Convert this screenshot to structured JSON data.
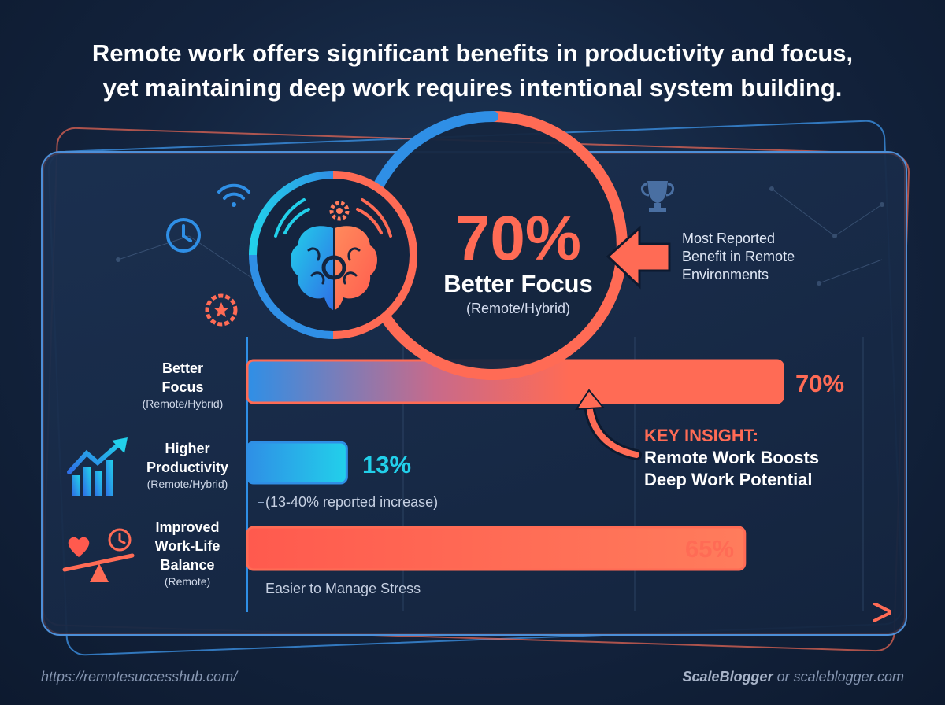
{
  "headline": {
    "line1": "Remote work offers significant benefits in productivity and focus,",
    "line2": "yet maintaining deep work requires intentional system building."
  },
  "hero": {
    "value": "70%",
    "label": "Better Focus",
    "sublabel": "(Remote/Hybrid)"
  },
  "callout": {
    "line1": "Most Reported",
    "line2": "Benefit in Remote",
    "line3": "Environments"
  },
  "chart_data": {
    "type": "bar",
    "orientation": "horizontal",
    "xlim": [
      0,
      100
    ],
    "grid": true,
    "categories": [
      {
        "main": "Better",
        "main2": "Focus",
        "sub": "(Remote/Hybrid)"
      },
      {
        "main": "Higher",
        "main2": "Productivity",
        "sub": "(Remote/Hybrid)"
      },
      {
        "main": "Improved",
        "main2": "Work-Life",
        "main3": "Balance",
        "sub": "(Remote)"
      }
    ],
    "values": [
      70,
      13,
      65
    ],
    "value_labels": [
      "70%",
      "13%",
      "65%"
    ],
    "notes": [
      "",
      "(13-40% reported increase)",
      "Easier to Manage Stress"
    ],
    "colors": {
      "orange": "#ff6b55",
      "blue": "#2f8fe6",
      "cyan": "#22d0ea"
    }
  },
  "insight": {
    "title": "KEY INSIGHT:",
    "line1": "Remote Work Boosts",
    "line2": "Deep Work Potential"
  },
  "footer": {
    "left": "https://remotesuccesshub.com/",
    "brand": "ScaleBlogger",
    "right_rest": " or scaleblogger.com"
  },
  "icons": [
    "wifi-icon",
    "clock-icon",
    "star-badge-icon",
    "trophy-icon",
    "gear-icon",
    "brain-icon",
    "growth-chart-icon",
    "balance-scale-icon",
    "heart-icon",
    "arrow-left-icon",
    "curved-arrow-icon"
  ]
}
